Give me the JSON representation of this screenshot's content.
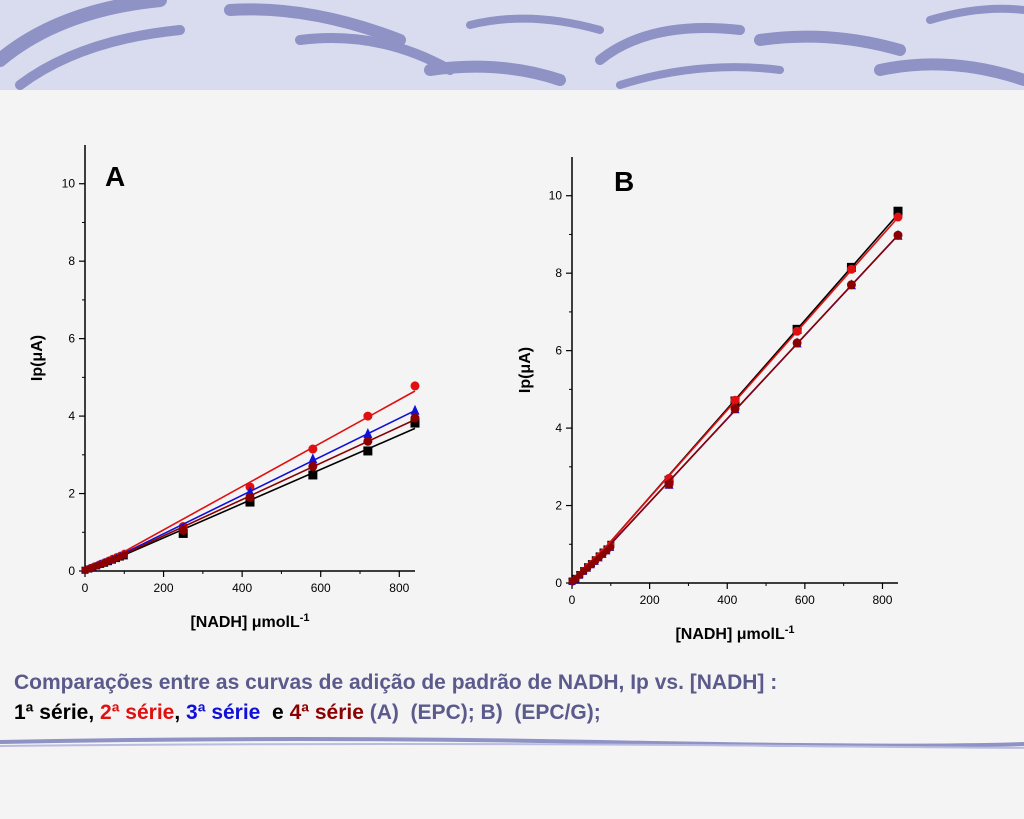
{
  "colors": {
    "banner_bg": "#d9dcef",
    "banner_stroke": "#8e92c4",
    "caption": "#5a5a8c",
    "s1": "#000000",
    "s2": "#e01010",
    "s3": "#1010d8",
    "s4": "#8b0000"
  },
  "caption": {
    "line1": "Comparações entre as curvas de adição de padrão de NADH, Ip vs. [NADH] :",
    "s1_label": "1ª série",
    "sep1": ", ",
    "s2_label": "2ª série",
    "sep2": ", ",
    "s3_label": "3ª série",
    "sep3": "  e ",
    "s4_label": "4ª série",
    "tail": " (A)  (EPC); B)  (EPC/G);"
  },
  "chart_data": [
    {
      "type": "scatter",
      "panel_label": "A",
      "xlabel": "[NADH] μmolL",
      "xlabel_sup": "-1",
      "ylabel": "Ip(μA)",
      "xlim": [
        0,
        840
      ],
      "ylim": [
        0,
        11
      ],
      "xticks": [
        0,
        200,
        400,
        600,
        800
      ],
      "yticks": [
        0,
        2,
        4,
        6,
        8,
        10
      ],
      "grid": false,
      "legend": "none",
      "series": [
        {
          "color": "#000000",
          "marker": "square",
          "x": [
            0,
            10,
            20,
            30,
            40,
            50,
            60,
            70,
            80,
            90,
            100,
            250,
            420,
            580,
            720,
            840
          ],
          "y": [
            0.02,
            0.05,
            0.09,
            0.13,
            0.17,
            0.2,
            0.24,
            0.28,
            0.32,
            0.36,
            0.39,
            0.97,
            1.78,
            2.48,
            3.1,
            3.82
          ]
        },
        {
          "color": "#e01010",
          "marker": "circle",
          "x": [
            0,
            10,
            20,
            30,
            40,
            50,
            60,
            70,
            80,
            90,
            100,
            250,
            420,
            580,
            720,
            840
          ],
          "y": [
            0.03,
            0.07,
            0.11,
            0.15,
            0.2,
            0.24,
            0.28,
            0.33,
            0.37,
            0.41,
            0.46,
            1.15,
            2.17,
            3.15,
            4.0,
            4.78
          ]
        },
        {
          "color": "#1010d8",
          "marker": "triangle",
          "x": [
            0,
            10,
            20,
            30,
            40,
            50,
            60,
            70,
            80,
            90,
            100,
            250,
            420,
            580,
            720,
            840
          ],
          "y": [
            0.02,
            0.06,
            0.1,
            0.14,
            0.18,
            0.22,
            0.26,
            0.3,
            0.34,
            0.38,
            0.42,
            1.1,
            2.05,
            2.9,
            3.55,
            4.15
          ]
        },
        {
          "color": "#8b0000",
          "marker": "circle",
          "x": [
            0,
            10,
            20,
            30,
            40,
            50,
            60,
            70,
            80,
            90,
            100,
            250,
            420,
            580,
            720,
            840
          ],
          "y": [
            0.02,
            0.05,
            0.09,
            0.13,
            0.17,
            0.21,
            0.25,
            0.29,
            0.33,
            0.37,
            0.41,
            1.05,
            1.9,
            2.7,
            3.35,
            3.95
          ]
        }
      ]
    },
    {
      "type": "scatter",
      "panel_label": "B",
      "xlabel": "[NADH] μmolL",
      "xlabel_sup": "-1",
      "ylabel": "Ip(μA)",
      "xlim": [
        0,
        840
      ],
      "ylim": [
        0,
        11
      ],
      "xticks": [
        0,
        200,
        400,
        600,
        800
      ],
      "yticks": [
        0,
        2,
        4,
        6,
        8,
        10
      ],
      "grid": false,
      "legend": "none",
      "series": [
        {
          "color": "#000000",
          "marker": "square",
          "x": [
            0,
            10,
            20,
            30,
            40,
            50,
            60,
            70,
            80,
            90,
            100,
            250,
            420,
            580,
            720,
            840
          ],
          "y": [
            0.05,
            0.12,
            0.22,
            0.32,
            0.42,
            0.5,
            0.6,
            0.7,
            0.8,
            0.88,
            1.0,
            2.65,
            4.7,
            6.55,
            8.15,
            9.6
          ]
        },
        {
          "color": "#e01010",
          "marker": "circle",
          "x": [
            0,
            10,
            20,
            30,
            40,
            50,
            60,
            70,
            80,
            90,
            100,
            250,
            420,
            580,
            720,
            840
          ],
          "y": [
            0.05,
            0.12,
            0.22,
            0.32,
            0.42,
            0.5,
            0.6,
            0.7,
            0.8,
            0.88,
            1.0,
            2.7,
            4.72,
            6.5,
            8.1,
            9.45
          ]
        },
        {
          "color": "#1010d8",
          "marker": "triangle",
          "x": [
            0,
            10,
            20,
            30,
            40,
            50,
            60,
            70,
            80,
            90,
            100,
            250,
            420,
            580,
            720,
            840
          ],
          "y": [
            0.04,
            0.1,
            0.2,
            0.3,
            0.38,
            0.47,
            0.56,
            0.65,
            0.74,
            0.83,
            0.92,
            2.55,
            4.5,
            6.2,
            7.7,
            8.98
          ]
        },
        {
          "color": "#8b0000",
          "marker": "circle",
          "x": [
            0,
            10,
            20,
            30,
            40,
            50,
            60,
            70,
            80,
            90,
            100,
            250,
            420,
            580,
            720,
            840
          ],
          "y": [
            0.04,
            0.1,
            0.2,
            0.3,
            0.38,
            0.47,
            0.56,
            0.65,
            0.74,
            0.83,
            0.92,
            2.55,
            4.5,
            6.2,
            7.7,
            8.98
          ]
        }
      ]
    }
  ]
}
